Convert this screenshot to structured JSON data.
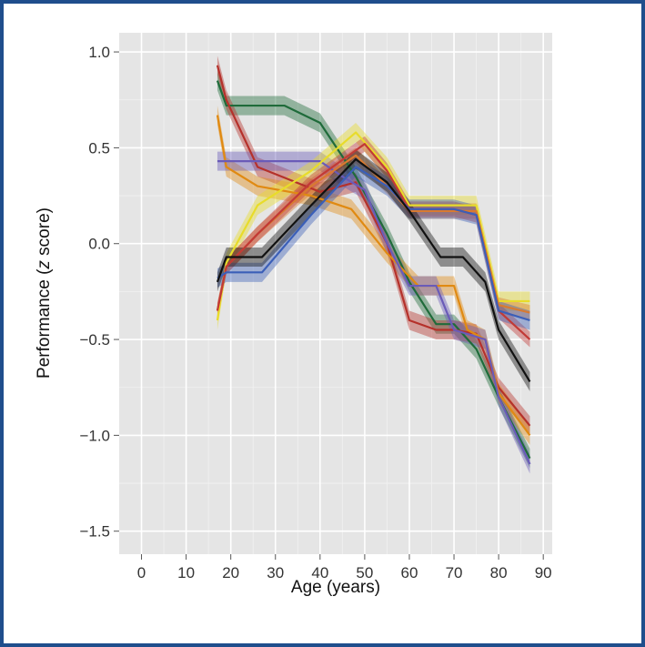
{
  "chart_data": {
    "type": "line",
    "title": "",
    "xlabel": "Age (years)",
    "ylabel_prefix": "Performance (",
    "ylabel_italic": "z",
    "ylabel_suffix": " score)",
    "xlim": [
      -5,
      92
    ],
    "ylim": [
      -1.62,
      1.1
    ],
    "x_ticks": [
      0,
      10,
      20,
      30,
      40,
      50,
      60,
      70,
      80,
      90
    ],
    "x_tick_labels": [
      "0",
      "10",
      "20",
      "30",
      "40",
      "50",
      "60",
      "70",
      "80",
      "90"
    ],
    "y_ticks": [
      1.0,
      0.5,
      0.0,
      -0.5,
      -1.0,
      -1.5
    ],
    "y_tick_labels": [
      "1.0",
      "0.5",
      "0.0",
      "−0.5",
      "−1.0",
      "−1.5"
    ],
    "grid": true,
    "background": "#e5e5e5",
    "series": [
      {
        "color": "#1f6b3a",
        "band": 0.05,
        "x": [
          17,
          19,
          32,
          40,
          48,
          55,
          60,
          66,
          70,
          75,
          80,
          87
        ],
        "y": [
          0.85,
          0.72,
          0.72,
          0.63,
          0.35,
          0.05,
          -0.2,
          -0.42,
          -0.42,
          -0.55,
          -0.8,
          -1.12
        ]
      },
      {
        "color": "#b5312b",
        "band": 0.05,
        "x": [
          17,
          19,
          26,
          40,
          48,
          55,
          60,
          66,
          70,
          75,
          80,
          87
        ],
        "y": [
          0.93,
          0.75,
          0.4,
          0.27,
          0.32,
          0.0,
          -0.4,
          -0.45,
          -0.45,
          -0.47,
          -0.75,
          -0.95
        ]
      },
      {
        "color": "#e08a12",
        "band": 0.05,
        "x": [
          17,
          19,
          26,
          38,
          47,
          55,
          62,
          70,
          73,
          77,
          80,
          87
        ],
        "y": [
          0.67,
          0.4,
          0.3,
          0.25,
          0.18,
          -0.05,
          -0.22,
          -0.22,
          -0.45,
          -0.5,
          -0.78,
          -1.0
        ]
      },
      {
        "color": "#6a5bb8",
        "band": 0.05,
        "x": [
          17,
          27,
          40,
          45,
          50,
          55,
          60,
          66,
          70,
          77,
          80,
          87
        ],
        "y": [
          0.43,
          0.43,
          0.43,
          0.35,
          0.28,
          0.0,
          -0.22,
          -0.22,
          -0.45,
          -0.5,
          -0.8,
          -1.15
        ]
      },
      {
        "color": "#e8dc2a",
        "band": 0.05,
        "x": [
          17,
          19,
          26,
          38,
          48,
          55,
          60,
          66,
          70,
          75,
          80,
          87
        ],
        "y": [
          -0.4,
          -0.1,
          0.2,
          0.38,
          0.58,
          0.4,
          0.2,
          0.2,
          0.2,
          0.2,
          -0.3,
          -0.3
        ]
      },
      {
        "color": "#d97a30",
        "band": 0.04,
        "x": [
          17,
          19,
          26,
          38,
          48,
          55,
          60,
          66,
          70,
          75,
          80,
          87
        ],
        "y": [
          -0.35,
          -0.12,
          0.05,
          0.3,
          0.46,
          0.3,
          0.17,
          0.17,
          0.17,
          0.17,
          -0.32,
          -0.36
        ]
      },
      {
        "color": "#c23a36",
        "band": 0.04,
        "x": [
          17,
          19,
          26,
          38,
          50,
          55,
          60,
          66,
          70,
          75,
          80,
          87
        ],
        "y": [
          -0.35,
          -0.12,
          0.05,
          0.32,
          0.52,
          0.38,
          0.18,
          0.18,
          0.18,
          0.15,
          -0.35,
          -0.5
        ]
      },
      {
        "color": "#3b5fb8",
        "band": 0.05,
        "x": [
          17,
          19,
          27,
          38,
          48,
          55,
          60,
          66,
          70,
          75,
          80,
          87
        ],
        "y": [
          -0.18,
          -0.15,
          -0.15,
          0.15,
          0.4,
          0.3,
          0.18,
          0.18,
          0.18,
          0.15,
          -0.35,
          -0.4
        ]
      },
      {
        "color": "#111111",
        "band": 0.05,
        "x": [
          17,
          19,
          27,
          38,
          48,
          55,
          60,
          67,
          72,
          77,
          80,
          87
        ],
        "y": [
          -0.2,
          -0.07,
          -0.07,
          0.2,
          0.44,
          0.32,
          0.17,
          -0.07,
          -0.07,
          -0.2,
          -0.45,
          -0.72
        ]
      }
    ]
  }
}
